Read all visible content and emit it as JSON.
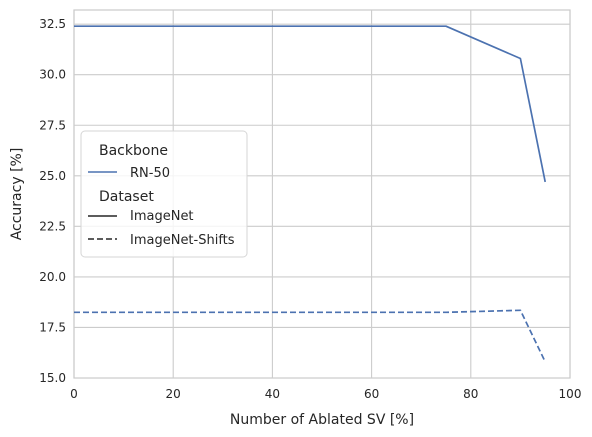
{
  "chart_data": {
    "type": "line",
    "xlabel": "Number of Ablated SV [%]",
    "ylabel": "Accuracy [%]",
    "xlim": [
      0,
      100
    ],
    "ylim": [
      15.0,
      33.2
    ],
    "xticks": [
      0,
      20,
      40,
      60,
      80,
      100
    ],
    "xtick_labels": [
      "0",
      "20",
      "40",
      "60",
      "80",
      "100"
    ],
    "yticks": [
      15.0,
      17.5,
      20.0,
      22.5,
      25.0,
      27.5,
      30.0,
      32.5
    ],
    "ytick_labels": [
      "15.0",
      "17.5",
      "20.0",
      "22.5",
      "25.0",
      "27.5",
      "30.0",
      "32.5"
    ],
    "grid": true,
    "legend_position": "center-left",
    "color": "#4c72b0",
    "series": [
      {
        "name": "ImageNet",
        "style": "solid",
        "x": [
          0,
          10,
          20,
          30,
          40,
          50,
          60,
          70,
          75,
          90,
          95
        ],
        "y": [
          32.4,
          32.4,
          32.4,
          32.4,
          32.4,
          32.4,
          32.4,
          32.4,
          32.4,
          30.8,
          24.7
        ]
      },
      {
        "name": "ImageNet-Shifts",
        "style": "dashed",
        "x": [
          0,
          10,
          20,
          30,
          40,
          50,
          60,
          70,
          75,
          90,
          95
        ],
        "y": [
          18.25,
          18.25,
          18.25,
          18.25,
          18.25,
          18.25,
          18.25,
          18.25,
          18.25,
          18.35,
          15.8
        ]
      }
    ],
    "legend": {
      "hue_title": "Backbone",
      "hue_entries": [
        {
          "label": "RN-50",
          "color": "#4c72b0"
        }
      ],
      "style_title": "Dataset",
      "style_entries": [
        {
          "label": "ImageNet",
          "style": "solid"
        },
        {
          "label": "ImageNet-Shifts",
          "style": "dashed"
        }
      ]
    }
  }
}
